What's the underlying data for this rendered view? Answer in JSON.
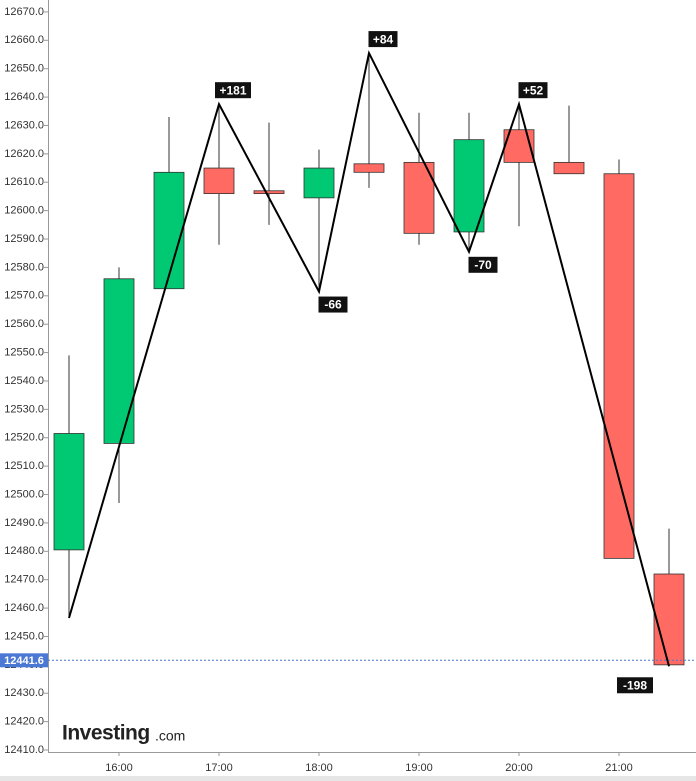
{
  "chart_data": {
    "type": "candlestick",
    "x": [
      15.5,
      16,
      16.5,
      17,
      17.5,
      18,
      18.5,
      19,
      19.5,
      20,
      20.5,
      21,
      21.5
    ],
    "open": [
      12480.5,
      12518,
      12572.5,
      12615,
      12607,
      12604.5,
      12616.5,
      12617,
      12592.5,
      12628.5,
      12617,
      12613,
      12472
    ],
    "high": [
      12549,
      12580,
      12633,
      12637.5,
      12631,
      12621.5,
      12655.5,
      12634.5,
      12634.5,
      12637.5,
      12637,
      12618,
      12488
    ],
    "low": [
      12456.5,
      12497,
      12572.5,
      12588,
      12595,
      12571.5,
      12608,
      12588,
      12585.5,
      12594.5,
      12613,
      12477.5,
      12439.5
    ],
    "close": [
      12521.5,
      12576,
      12613.5,
      12606,
      12606,
      12615,
      12613.5,
      12592,
      12625,
      12617,
      12613,
      12477.5,
      12440
    ],
    "up_color": "#00c873",
    "down_color": "#ff6b63",
    "zigzag": {
      "x": [
        15.5,
        17,
        18,
        18.5,
        19.5,
        20,
        21.5
      ],
      "values": [
        12456.5,
        12637.5,
        12571.5,
        12655.5,
        12585.5,
        12637.5,
        12439.5
      ],
      "labels": [
        null,
        "+181",
        "-66",
        "+84",
        "-70",
        "+52",
        "-198"
      ],
      "color": "#000000"
    },
    "last_price": 12441.6,
    "last_price_color": "#4a78d4",
    "xlim": [
      15.29,
      21.77
    ],
    "xticks": [
      {
        "value": 16,
        "label": "16:00"
      },
      {
        "value": 17,
        "label": "17:00"
      },
      {
        "value": 18,
        "label": "18:00"
      },
      {
        "value": 19,
        "label": "19:00"
      },
      {
        "value": 20,
        "label": "20:00"
      },
      {
        "value": 21,
        "label": "21:00"
      }
    ],
    "ylim": [
      12409.3,
      12674.2
    ],
    "yticks": [
      {
        "value": 12410,
        "label": "12410.0"
      },
      {
        "value": 12420,
        "label": "12420.0"
      },
      {
        "value": 12430,
        "label": "12430.0"
      },
      {
        "value": 12440,
        "label": "12440.0"
      },
      {
        "value": 12450,
        "label": "12450.0"
      },
      {
        "value": 12460,
        "label": "12460.0"
      },
      {
        "value": 12470,
        "label": "12470.0"
      },
      {
        "value": 12480,
        "label": "12480.0"
      },
      {
        "value": 12490,
        "label": "12490.0"
      },
      {
        "value": 12500,
        "label": "12500.0"
      },
      {
        "value": 12510,
        "label": "12510.0"
      },
      {
        "value": 12520,
        "label": "12520.0"
      },
      {
        "value": 12530,
        "label": "12530.0"
      },
      {
        "value": 12540,
        "label": "12540.0"
      },
      {
        "value": 12550,
        "label": "12550.0"
      },
      {
        "value": 12560,
        "label": "12560.0"
      },
      {
        "value": 12570,
        "label": "12570.0"
      },
      {
        "value": 12580,
        "label": "12580.0"
      },
      {
        "value": 12590,
        "label": "12590.0"
      },
      {
        "value": 12600,
        "label": "12600.0"
      },
      {
        "value": 12610,
        "label": "12610.0"
      },
      {
        "value": 12620,
        "label": "12620.0"
      },
      {
        "value": 12630,
        "label": "12630.0"
      },
      {
        "value": 12640,
        "label": "12640.0"
      },
      {
        "value": 12650,
        "label": "12650.0"
      },
      {
        "value": 12660,
        "label": "12660.0"
      },
      {
        "value": 12670,
        "label": "12670.0"
      }
    ],
    "watermark": {
      "brand": "Investing",
      "suffix": ".com"
    }
  }
}
